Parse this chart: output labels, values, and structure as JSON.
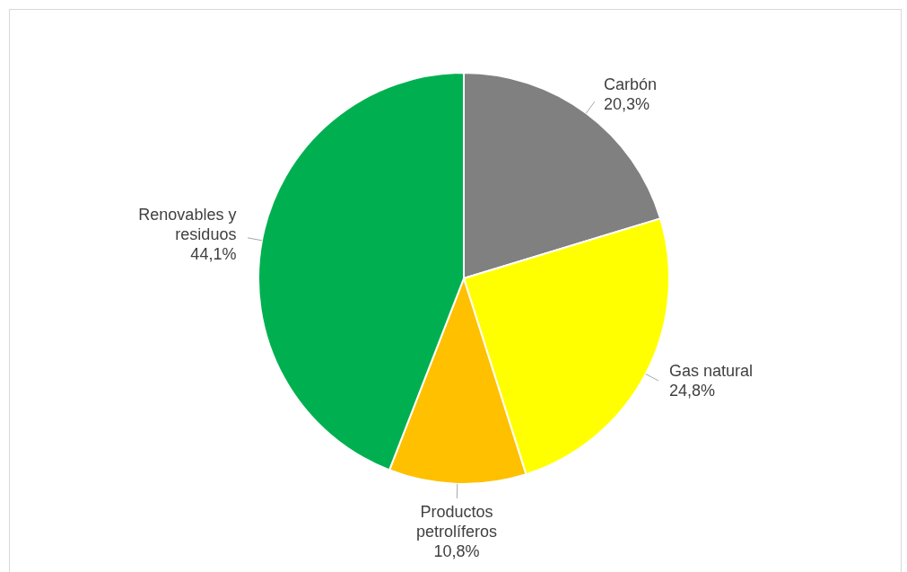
{
  "chart_data": {
    "type": "pie",
    "categories": [
      "Carbón",
      "Gas natural",
      "Productos petrolíferos",
      "Renovables y residuos"
    ],
    "values": [
      20.3,
      24.8,
      10.8,
      44.1
    ],
    "colors": [
      "#808080",
      "#ffff00",
      "#ffc000",
      "#00b050"
    ],
    "value_labels": [
      "20,3%",
      "24,8%",
      "10,8%",
      "44,1%"
    ],
    "legend": false
  }
}
